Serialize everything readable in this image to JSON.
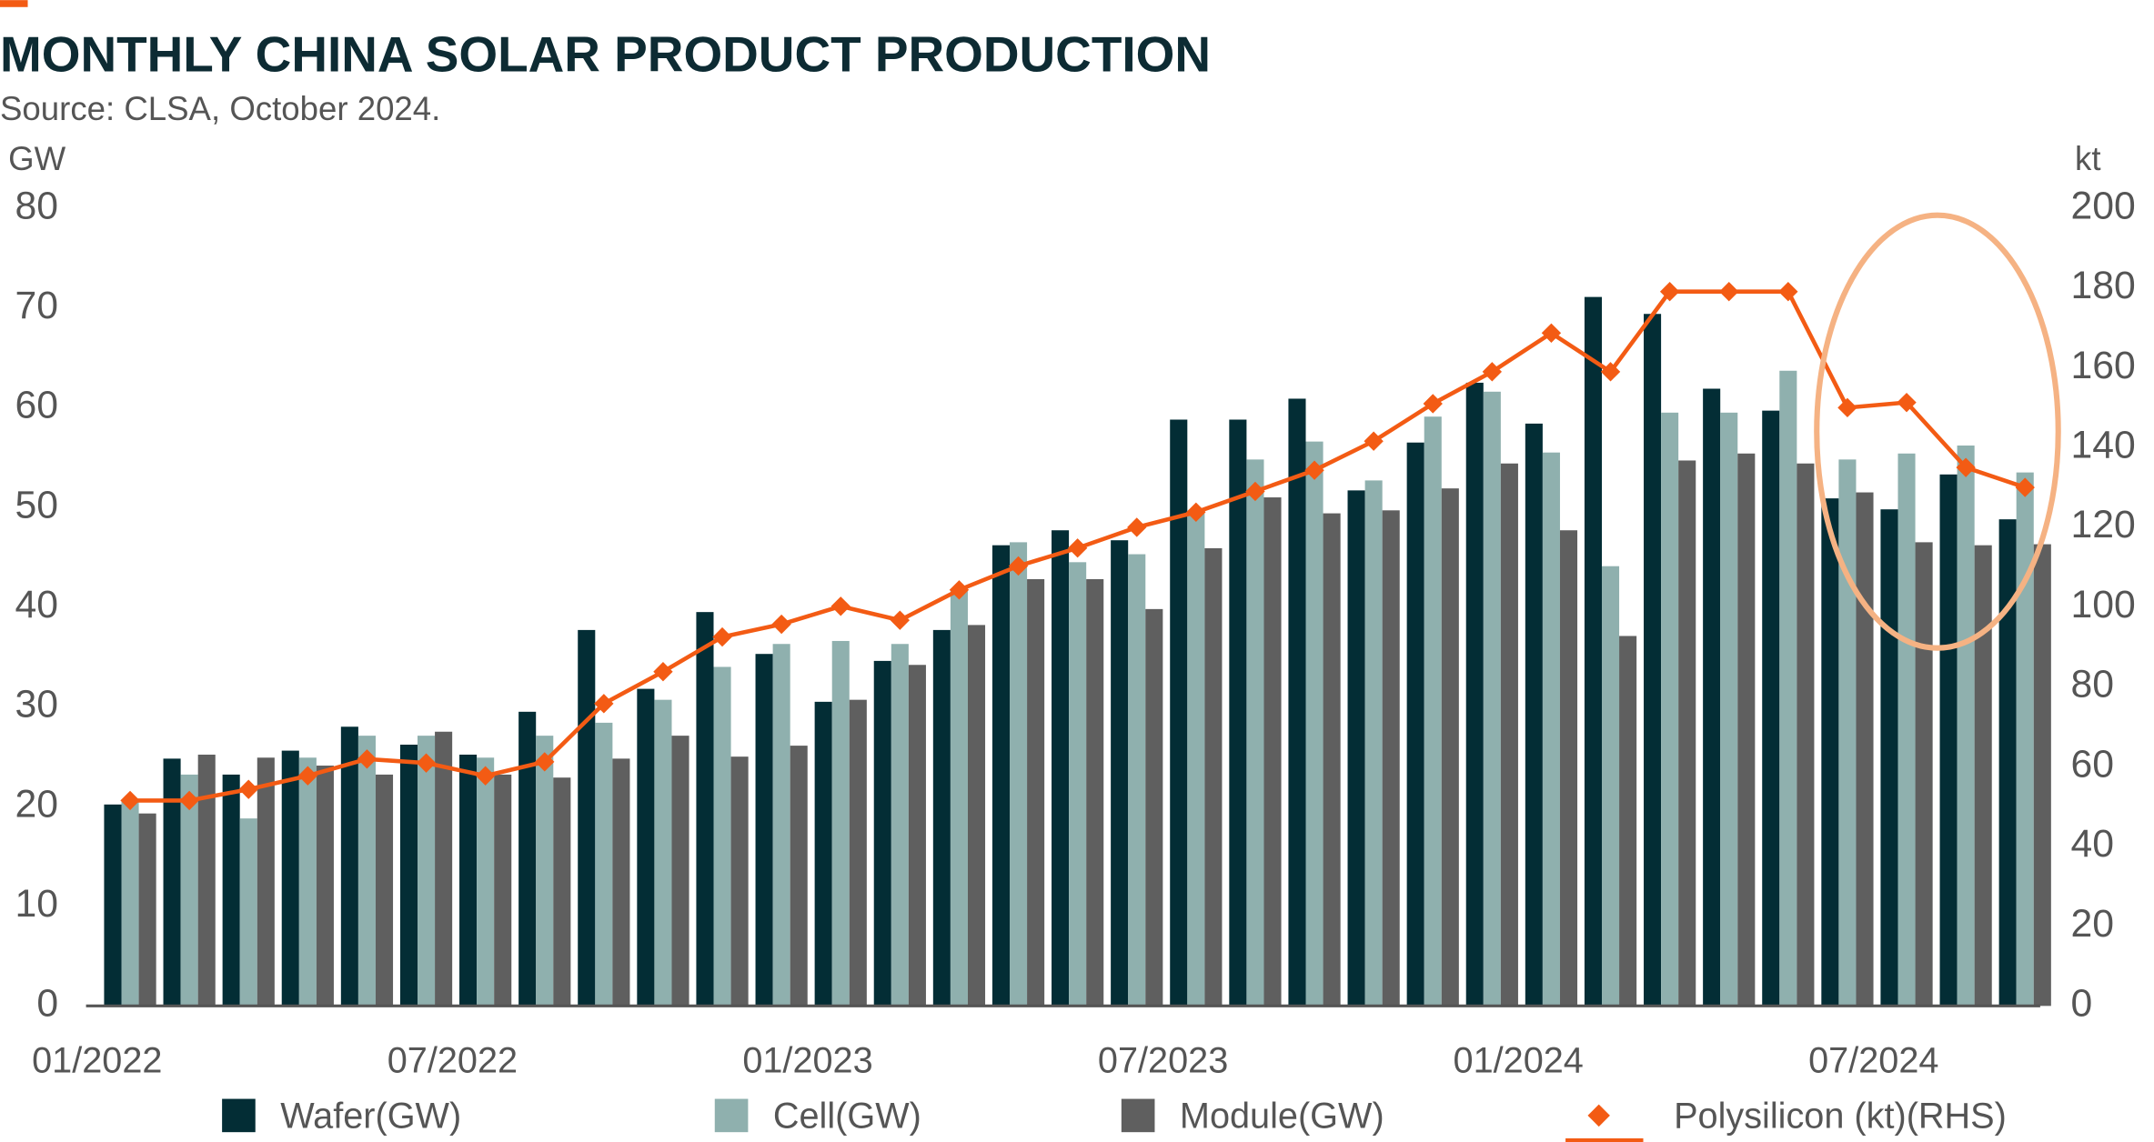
{
  "chart_data": {
    "type": "bar",
    "title": "MONTHLY CHINA SOLAR PRODUCT PRODUCTION",
    "subtitle": "Source: CLSA, October 2024.",
    "y_label": "GW",
    "y2_label": "kt",
    "categories": [
      "01/2022",
      null,
      null,
      null,
      null,
      null,
      "07/2022",
      null,
      null,
      null,
      null,
      null,
      "01/2023",
      null,
      null,
      null,
      null,
      null,
      "07/2023",
      null,
      null,
      null,
      null,
      null,
      "01/2024",
      null,
      null,
      null,
      null,
      null,
      "07/2024",
      null,
      null
    ],
    "series": [
      {
        "name": "Wafer(GW)",
        "color": "#032d35",
        "values": [
          20.2,
          24.8,
          23.2,
          25.6,
          28,
          26.2,
          25.2,
          29.5,
          37.7,
          31.8,
          39.5,
          35.3,
          30.5,
          34.6,
          37.7,
          46.2,
          47.7,
          46.7,
          58.8,
          58.8,
          60.9,
          51.7,
          56.5,
          62.5,
          58.4,
          71.1,
          69.4,
          61.9,
          59.7,
          50.9,
          49.8,
          53.3,
          48.8
        ]
      },
      {
        "name": "Cell(GW)",
        "color": "#8fb0ae",
        "values": [
          20.5,
          23.2,
          18.8,
          24.9,
          27.1,
          27.1,
          24.9,
          27.1,
          28.4,
          30.7,
          34,
          36.3,
          36.6,
          36.3,
          41.6,
          46.5,
          44.5,
          45.3,
          49.4,
          54.8,
          56.6,
          52.7,
          59.1,
          61.6,
          55.5,
          44.1,
          59.5,
          59.5,
          63.7,
          54.8,
          55.4,
          56.2,
          53.5
        ]
      },
      {
        "name": "Module(GW)",
        "color": "#5f5f5f",
        "values": [
          19.3,
          25.2,
          24.9,
          24.1,
          23.2,
          27.5,
          23.2,
          22.9,
          24.8,
          27.1,
          25,
          26.1,
          30.7,
          34.2,
          38.2,
          42.8,
          42.8,
          39.8,
          45.9,
          51,
          49.4,
          49.7,
          51.9,
          54.4,
          47.7,
          37.1,
          54.7,
          55.4,
          54.4,
          51.5,
          46.5,
          46.2,
          46.3
        ]
      },
      {
        "name": "Polysilicon (kt)(RHS)",
        "color": "#f35b14",
        "type": "line",
        "axis": "y2",
        "values": [
          51.5,
          51.5,
          54.3,
          57.7,
          61.9,
          60.9,
          57.7,
          61.2,
          75.8,
          83.8,
          92.5,
          95.7,
          100.2,
          96.7,
          104.3,
          110.3,
          114.8,
          120,
          123.8,
          129,
          134.3,
          141.6,
          151,
          159,
          168.7,
          159,
          179.1,
          179.1,
          179.1,
          150,
          151.3,
          135,
          130
        ]
      }
    ],
    "ylim": [
      0,
      80
    ],
    "yticks": [
      0,
      10,
      20,
      30,
      40,
      50,
      60,
      70,
      80
    ],
    "y2lim": [
      0,
      200
    ],
    "y2ticks": [
      0,
      20,
      40,
      60,
      80,
      100,
      120,
      140,
      160,
      180,
      200
    ],
    "grid": false
  }
}
